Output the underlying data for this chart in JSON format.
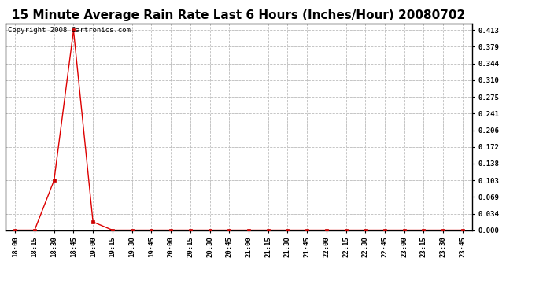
{
  "title": "15 Minute Average Rain Rate Last 6 Hours (Inches/Hour) 20080702",
  "copyright_text": "Copyright 2008 Cartronics.com",
  "background_color": "#ffffff",
  "plot_bg_color": "#ffffff",
  "line_color": "#dd0000",
  "marker_color": "#cc0000",
  "grid_color": "#bbbbbb",
  "x_labels": [
    "18:00",
    "18:15",
    "18:30",
    "18:45",
    "19:00",
    "19:15",
    "19:30",
    "19:45",
    "20:00",
    "20:15",
    "20:30",
    "20:45",
    "21:00",
    "21:15",
    "21:30",
    "21:45",
    "22:00",
    "22:15",
    "22:30",
    "22:45",
    "23:00",
    "23:15",
    "23:30",
    "23:45"
  ],
  "y_values": [
    0.0,
    0.0,
    0.103,
    0.413,
    0.017,
    0.0,
    0.0,
    0.0,
    0.0,
    0.0,
    0.0,
    0.0,
    0.0,
    0.0,
    0.0,
    0.0,
    0.0,
    0.0,
    0.0,
    0.0,
    0.0,
    0.0,
    0.0,
    0.0
  ],
  "yticks": [
    0.0,
    0.034,
    0.069,
    0.103,
    0.138,
    0.172,
    0.206,
    0.241,
    0.275,
    0.31,
    0.344,
    0.379,
    0.413
  ],
  "ylim": [
    0.0,
    0.4268
  ],
  "title_fontsize": 11,
  "tick_fontsize": 6.5,
  "copyright_fontsize": 6.5
}
